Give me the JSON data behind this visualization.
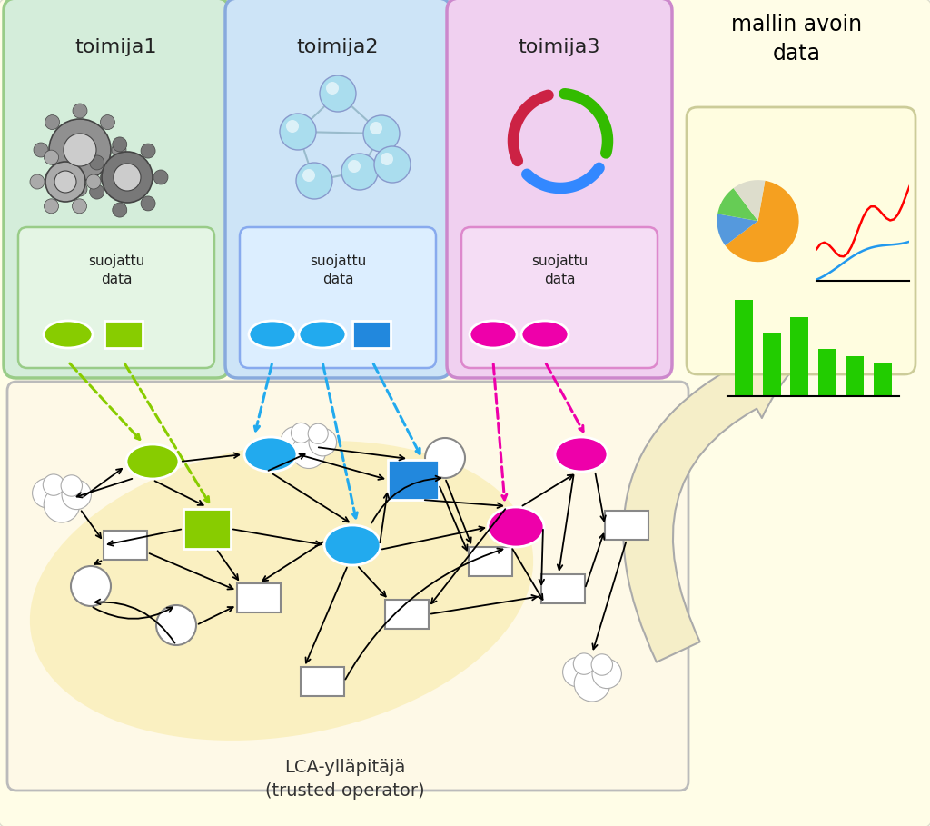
{
  "bg_color": "#ffffff",
  "title_text": "mallin avoin\ndata",
  "lca_label": "LCA-ylläpitäjä\n(trusted operator)",
  "actor_labels": [
    "toimija1",
    "toimija2",
    "toimija3"
  ],
  "data_box_labels": [
    "suojattu\ndata",
    "suojattu\ndata",
    "suojattu\ndata"
  ]
}
